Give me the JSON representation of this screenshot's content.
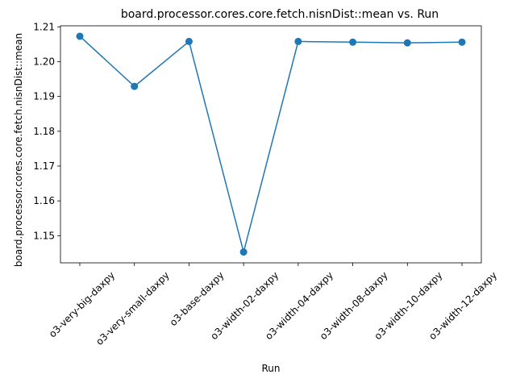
{
  "chart_data": {
    "type": "line",
    "title": "board.processor.cores.core.fetch.nisnDist::mean vs. Run",
    "xlabel": "Run",
    "ylabel": "board.processor.cores.core.fetch.nisnDist::mean",
    "categories": [
      "o3-very-big-daxpy",
      "o3-very-small-daxpy",
      "o3-base-daxpy",
      "o3-width-02-daxpy",
      "o3-width-04-daxpy",
      "o3-width-08-daxpy",
      "o3-width-10-daxpy",
      "o3-width-12-daxpy"
    ],
    "series": [
      {
        "values": [
          1.2073,
          1.1929,
          1.2058,
          1.1453,
          1.2058,
          1.2056,
          1.2054,
          1.2056
        ]
      }
    ],
    "yticks": [
      "1.15",
      "1.16",
      "1.17",
      "1.18",
      "1.19",
      "1.20",
      "1.21"
    ],
    "ylim": [
      1.1422,
      1.2103
    ],
    "grid": false,
    "legend": "none",
    "line_color": "#1f77b4"
  }
}
